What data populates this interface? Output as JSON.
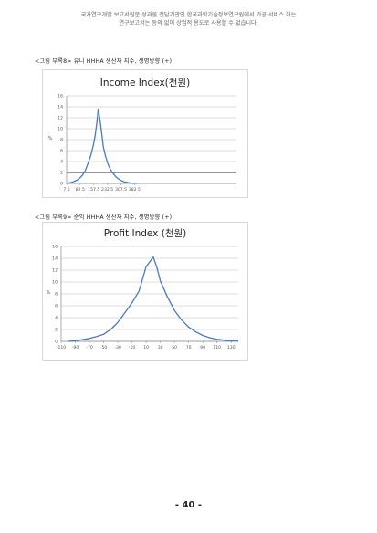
{
  "header": {
    "line1": "국가연구개발 보고서원문 성과물 전담기관인 한국과학기술정보연구원에서 가공·서비스 하는",
    "line2": "연구보고서는 동의 없이 상업적 용도로 사용할 수 없습니다."
  },
  "captions": {
    "first": "<그림 부록8> 유니 HHHA 생산자 지수, 생명방향 (+)",
    "second": "<그림 부록9> 순익 HHHA 생산자 지수, 생명방향 (+)"
  },
  "page_number": "- 40 -",
  "chart_data": [
    {
      "type": "line",
      "title": "Income Index(천원)",
      "ylabel": "%",
      "ylim": [
        0,
        16
      ],
      "yticks": [
        0,
        2,
        4,
        6,
        8,
        10,
        12,
        14,
        16
      ],
      "xlim": [
        7.5,
        945
      ],
      "xticks": [
        7.5,
        82.5,
        157.5,
        232.5,
        307.5,
        382.5
      ],
      "tick_labels": [
        "7.5",
        "82.5",
        "157.5",
        "232.5",
        "307.5",
        "382.5"
      ],
      "highlight_line_y": 2,
      "color": "#4a7ab8",
      "x": [
        7.5,
        20,
        35,
        50,
        65,
        80,
        95,
        110,
        125,
        140,
        155,
        165,
        175,
        182,
        190,
        200,
        210,
        222,
        235,
        250,
        265,
        280,
        295,
        310,
        325,
        340,
        355,
        370,
        385,
        395
      ],
      "y": [
        0,
        0.1,
        0.2,
        0.4,
        0.6,
        1.0,
        1.5,
        2.3,
        3.6,
        5.0,
        7.0,
        8.7,
        11.2,
        13.6,
        12.0,
        9.5,
        6.7,
        5.0,
        3.6,
        2.5,
        1.8,
        1.2,
        0.8,
        0.5,
        0.3,
        0.2,
        0.1,
        0.05,
        0.02,
        0
      ]
    },
    {
      "type": "line",
      "title": "Profit Index (천원)",
      "ylabel": "%",
      "ylim": [
        0,
        16
      ],
      "yticks": [
        0,
        2,
        4,
        6,
        8,
        10,
        12,
        14,
        16
      ],
      "x": [
        -100,
        -90,
        -80,
        -70,
        -60,
        -50,
        -40,
        -30,
        -20,
        -10,
        0,
        10,
        20,
        25,
        30,
        40,
        50,
        60,
        70,
        80,
        90,
        100,
        110,
        120,
        130,
        140
      ],
      "y": [
        0,
        0.1,
        0.3,
        0.5,
        0.8,
        1.2,
        2.0,
        3.2,
        4.8,
        6.5,
        8.5,
        12.6,
        14.2,
        12.5,
        10.2,
        7.5,
        5.2,
        3.6,
        2.4,
        1.6,
        1.0,
        0.6,
        0.35,
        0.2,
        0.1,
        0.05
      ],
      "xticks": [
        -110,
        -90,
        -70,
        -50,
        -30,
        -10,
        10,
        30,
        50,
        70,
        90,
        110,
        130
      ],
      "tick_labels": [
        "-110",
        "-90",
        "-70",
        "-50",
        "-30",
        "-10",
        "10",
        "30",
        "50",
        "70",
        "90",
        "110",
        "130"
      ],
      "color": "#4a7ab8"
    }
  ]
}
